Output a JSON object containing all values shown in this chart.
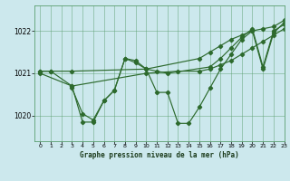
{
  "background_color": "#cce8ed",
  "grid_color": "#5a9e6f",
  "line_color": "#2d6a2d",
  "title": "Graphe pression niveau de la mer (hPa)",
  "ylabel_ticks": [
    1020,
    1021,
    1022
  ],
  "xlim": [
    -0.5,
    23
  ],
  "ylim": [
    1019.4,
    1022.6
  ],
  "series": [
    {
      "x": [
        0,
        1,
        3,
        10,
        15,
        16,
        17,
        18,
        19,
        20,
        21,
        22,
        23
      ],
      "y": [
        1021.05,
        1021.05,
        1021.05,
        1021.1,
        1021.35,
        1021.5,
        1021.65,
        1021.8,
        1021.9,
        1022.0,
        1022.05,
        1022.1,
        1022.25
      ]
    },
    {
      "x": [
        0,
        3,
        10,
        13,
        15,
        16,
        17,
        18,
        19,
        20,
        21,
        22,
        23
      ],
      "y": [
        1021.0,
        1020.7,
        1021.0,
        1021.05,
        1021.05,
        1021.1,
        1021.2,
        1021.3,
        1021.45,
        1021.6,
        1021.75,
        1021.9,
        1022.05
      ]
    },
    {
      "x": [
        0,
        1,
        3,
        4,
        5,
        6,
        7,
        8,
        9,
        10,
        11,
        12,
        13,
        14,
        15,
        16,
        17,
        18,
        19,
        20,
        21,
        22,
        23
      ],
      "y": [
        1021.05,
        1021.05,
        1020.7,
        1019.85,
        1019.85,
        1020.35,
        1020.6,
        1021.35,
        1021.3,
        1021.1,
        1020.55,
        1020.55,
        1019.82,
        1019.82,
        1020.2,
        1020.65,
        1021.1,
        1021.45,
        1021.8,
        1022.0,
        1021.1,
        1021.95,
        1022.2
      ]
    },
    {
      "x": [
        3,
        4,
        5,
        6,
        7,
        8,
        9,
        10,
        11,
        12,
        16,
        17,
        18,
        19,
        20,
        21,
        22,
        23
      ],
      "y": [
        1020.65,
        1020.05,
        1019.9,
        1020.35,
        1020.6,
        1021.35,
        1021.25,
        1021.1,
        1021.05,
        1021.0,
        1021.15,
        1021.35,
        1021.6,
        1021.85,
        1022.05,
        1021.15,
        1022.0,
        1022.15
      ]
    }
  ]
}
